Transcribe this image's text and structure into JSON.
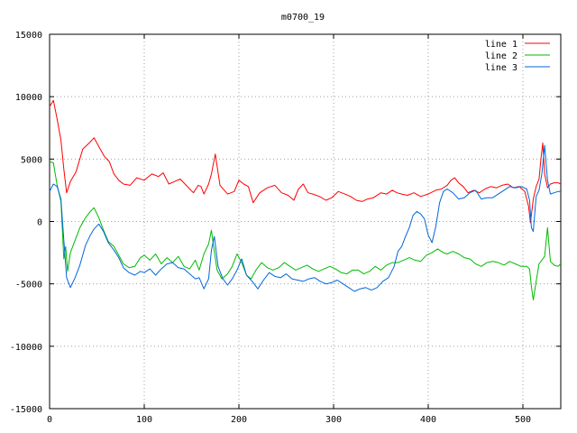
{
  "chart_data": {
    "type": "line",
    "title": "m0700_19",
    "xlabel": "",
    "ylabel": "",
    "xlim": [
      0,
      540
    ],
    "ylim": [
      -15000,
      15000
    ],
    "xticks": [
      0,
      100,
      200,
      300,
      400,
      500
    ],
    "yticks": [
      -15000,
      -10000,
      -5000,
      0,
      5000,
      10000,
      15000
    ],
    "grid": true,
    "legend_position": "top-right",
    "series": [
      {
        "name": "line 1",
        "color": "#ff0000",
        "x": [
          0,
          4,
          8,
          12,
          15,
          18,
          22,
          28,
          35,
          42,
          47,
          52,
          58,
          63,
          68,
          73,
          78,
          85,
          92,
          100,
          108,
          115,
          120,
          126,
          132,
          138,
          143,
          148,
          152,
          157,
          160,
          163,
          168,
          171,
          175,
          180,
          188,
          195,
          200,
          205,
          210,
          215,
          222,
          230,
          238,
          245,
          252,
          258,
          263,
          268,
          273,
          278,
          285,
          292,
          298,
          305,
          312,
          318,
          324,
          330,
          336,
          342,
          350,
          356,
          362,
          367,
          372,
          378,
          385,
          392,
          400,
          408,
          414,
          420,
          424,
          428,
          432,
          437,
          442,
          448,
          454,
          460,
          466,
          472,
          478,
          484,
          490,
          496,
          502,
          506,
          508,
          511,
          514,
          517,
          519,
          521,
          523,
          526,
          529,
          533,
          537,
          540
        ],
        "y": [
          9200,
          9700,
          8200,
          6500,
          4200,
          2300,
          3200,
          4000,
          5800,
          6300,
          6700,
          6000,
          5200,
          4800,
          3800,
          3300,
          3000,
          2900,
          3500,
          3300,
          3800,
          3600,
          3900,
          3000,
          3200,
          3400,
          3000,
          2600,
          2300,
          2900,
          2800,
          2200,
          3000,
          3800,
          5400,
          2900,
          2200,
          2400,
          3300,
          3000,
          2800,
          1500,
          2300,
          2700,
          2900,
          2300,
          2100,
          1700,
          2600,
          3000,
          2300,
          2200,
          2000,
          1700,
          1900,
          2400,
          2200,
          2000,
          1700,
          1600,
          1800,
          1900,
          2300,
          2200,
          2500,
          2300,
          2200,
          2100,
          2300,
          2000,
          2200,
          2500,
          2600,
          2900,
          3300,
          3500,
          3100,
          2800,
          2300,
          2500,
          2300,
          2600,
          2800,
          2700,
          2900,
          3000,
          2700,
          2800,
          2400,
          1200,
          -100,
          1800,
          2800,
          3400,
          5000,
          6300,
          3800,
          2700,
          3000,
          3100,
          3100,
          3000
        ]
      },
      {
        "name": "line 2",
        "color": "#00bb00",
        "x": [
          0,
          4,
          8,
          12,
          15,
          17,
          19,
          22,
          27,
          32,
          38,
          43,
          47,
          52,
          57,
          62,
          68,
          73,
          78,
          84,
          90,
          96,
          100,
          106,
          112,
          118,
          124,
          130,
          136,
          142,
          148,
          154,
          158,
          163,
          168,
          171,
          173,
          177,
          182,
          188,
          193,
          198,
          203,
          208,
          213,
          218,
          224,
          230,
          236,
          242,
          248,
          254,
          260,
          266,
          272,
          278,
          284,
          290,
          296,
          302,
          308,
          314,
          320,
          326,
          332,
          338,
          344,
          350,
          356,
          362,
          368,
          374,
          380,
          386,
          392,
          398,
          404,
          410,
          416,
          420,
          426,
          432,
          438,
          444,
          450,
          456,
          462,
          468,
          474,
          480,
          486,
          492,
          498,
          504,
          507,
          509,
          511,
          514,
          517,
          520,
          523,
          526,
          529,
          533,
          537,
          540
        ],
        "y": [
          4800,
          4700,
          2900,
          1600,
          -3000,
          -2000,
          -4000,
          -2500,
          -1500,
          -500,
          300,
          800,
          1100,
          300,
          -700,
          -1600,
          -2000,
          -2700,
          -3400,
          -3700,
          -3600,
          -2900,
          -2700,
          -3100,
          -2600,
          -3400,
          -2900,
          -3300,
          -2800,
          -3600,
          -3800,
          -3100,
          -3900,
          -2600,
          -1800,
          -700,
          -1900,
          -3900,
          -4600,
          -4200,
          -3600,
          -2600,
          -3300,
          -4300,
          -4600,
          -3900,
          -3300,
          -3700,
          -3900,
          -3700,
          -3300,
          -3600,
          -3900,
          -3700,
          -3500,
          -3800,
          -4000,
          -3800,
          -3600,
          -3800,
          -4100,
          -4200,
          -3900,
          -3900,
          -4200,
          -4000,
          -3600,
          -3900,
          -3500,
          -3300,
          -3300,
          -3100,
          -2900,
          -3100,
          -3200,
          -2700,
          -2500,
          -2200,
          -2500,
          -2600,
          -2400,
          -2600,
          -2900,
          -3000,
          -3400,
          -3600,
          -3300,
          -3200,
          -3300,
          -3500,
          -3200,
          -3400,
          -3600,
          -3600,
          -3800,
          -5200,
          -6300,
          -4800,
          -3400,
          -3100,
          -2800,
          -500,
          -3200,
          -3500,
          -3600,
          -3400
        ]
      },
      {
        "name": "line 3",
        "color": "#0066dd",
        "x": [
          0,
          4,
          8,
          12,
          15,
          18,
          22,
          27,
          32,
          38,
          43,
          47,
          52,
          57,
          62,
          68,
          73,
          78,
          84,
          90,
          96,
          100,
          106,
          112,
          118,
          124,
          130,
          136,
          142,
          148,
          154,
          158,
          163,
          168,
          171,
          174,
          178,
          183,
          188,
          193,
          198,
          203,
          208,
          214,
          220,
          226,
          232,
          238,
          244,
          250,
          256,
          262,
          268,
          274,
          280,
          286,
          292,
          298,
          304,
          310,
          316,
          322,
          328,
          334,
          340,
          346,
          352,
          358,
          364,
          368,
          372,
          376,
          380,
          384,
          388,
          392,
          396,
          400,
          404,
          408,
          412,
          416,
          420,
          426,
          432,
          438,
          444,
          450,
          456,
          462,
          468,
          474,
          480,
          486,
          492,
          498,
          504,
          507,
          509,
          511,
          514,
          517,
          520,
          523,
          526,
          529,
          533,
          537,
          540
        ],
        "y": [
          2400,
          3000,
          2800,
          1800,
          -1500,
          -4500,
          -5300,
          -4500,
          -3500,
          -1900,
          -1100,
          -600,
          -200,
          -800,
          -1700,
          -2300,
          -2900,
          -3700,
          -4100,
          -4300,
          -4000,
          -4100,
          -3800,
          -4300,
          -3800,
          -3400,
          -3300,
          -3700,
          -3800,
          -4200,
          -4600,
          -4500,
          -5400,
          -4600,
          -2300,
          -1200,
          -3600,
          -4600,
          -5100,
          -4600,
          -3900,
          -3000,
          -4300,
          -4800,
          -5400,
          -4700,
          -4100,
          -4400,
          -4500,
          -4200,
          -4600,
          -4700,
          -4800,
          -4600,
          -4500,
          -4800,
          -5000,
          -4900,
          -4700,
          -5000,
          -5300,
          -5600,
          -5400,
          -5300,
          -5500,
          -5300,
          -4800,
          -4500,
          -3600,
          -2400,
          -2000,
          -1200,
          -500,
          500,
          800,
          600,
          200,
          -1100,
          -1700,
          -400,
          1500,
          2400,
          2600,
          2300,
          1800,
          1900,
          2300,
          2500,
          1800,
          1900,
          1900,
          2200,
          2500,
          2800,
          2700,
          2800,
          2600,
          1700,
          -500,
          -800,
          2000,
          2500,
          3800,
          6100,
          3300,
          2200,
          2300,
          2400,
          2400
        ]
      }
    ]
  }
}
